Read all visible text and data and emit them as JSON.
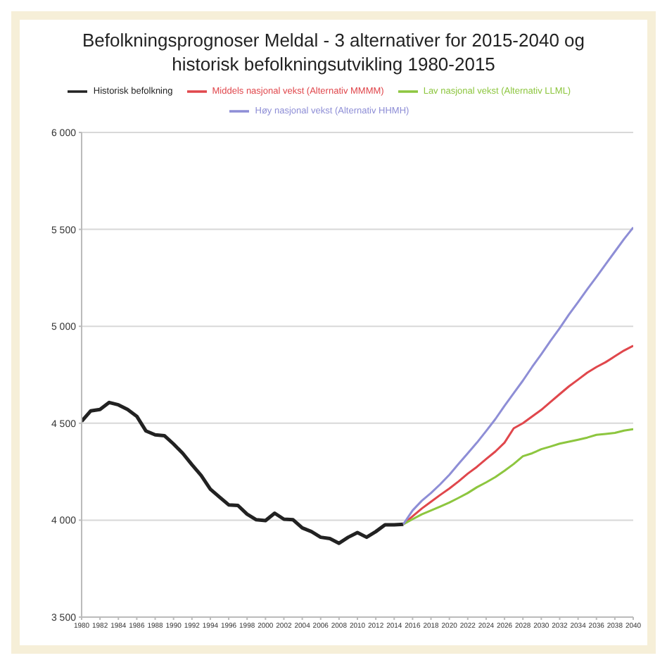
{
  "chart_data": {
    "type": "line",
    "title": "Befolkningsprognoser Meldal - 3 alternativer  for 2015-2040 og historisk befolkningsutvikling 1980-2015",
    "xlim": [
      1980,
      2040
    ],
    "xticks": [
      1980,
      1982,
      1984,
      1986,
      1988,
      1990,
      1992,
      1994,
      1996,
      1998,
      2000,
      2002,
      2004,
      2006,
      2008,
      2010,
      2012,
      2014,
      2016,
      2018,
      2020,
      2022,
      2024,
      2026,
      2028,
      2030,
      2032,
      2034,
      2036,
      2038,
      2040
    ],
    "ylim": [
      3500,
      6000
    ],
    "yticks": [
      {
        "value": 3500,
        "label": "3 500"
      },
      {
        "value": 4000,
        "label": "4 000"
      },
      {
        "value": 4500,
        "label": "4 500"
      },
      {
        "value": 5000,
        "label": "5 000"
      },
      {
        "value": 5500,
        "label": "5 500"
      },
      {
        "value": 6000,
        "label": "6 000"
      }
    ],
    "grid": "y",
    "legend": "top",
    "marker": "none",
    "line_style": "solid",
    "series": [
      {
        "name": "Historisk befolkning",
        "color": "#222222",
        "x": [
          1980,
          1981,
          1982,
          1983,
          1984,
          1985,
          1986,
          1987,
          1988,
          1989,
          1990,
          1991,
          1992,
          1993,
          1994,
          1995,
          1996,
          1997,
          1998,
          1999,
          2000,
          2001,
          2002,
          2003,
          2004,
          2005,
          2006,
          2007,
          2008,
          2009,
          2010,
          2011,
          2012,
          2013,
          2014,
          2015
        ],
        "values": [
          4510,
          4564,
          4571,
          4607,
          4595,
          4571,
          4536,
          4460,
          4440,
          4436,
          4393,
          4345,
          4286,
          4231,
          4160,
          4119,
          4079,
          4076,
          4031,
          4002,
          3998,
          4036,
          4005,
          4002,
          3960,
          3941,
          3912,
          3905,
          3881,
          3912,
          3936,
          3912,
          3941,
          3976,
          3976,
          3979
        ]
      },
      {
        "name": "Middels nasjonal vekst (Alternativ MMMM)",
        "color": "#e0474c",
        "x": [
          2015,
          2016,
          2017,
          2018,
          2019,
          2020,
          2021,
          2022,
          2023,
          2024,
          2025,
          2026,
          2027,
          2028,
          2029,
          2030,
          2031,
          2032,
          2033,
          2034,
          2035,
          2036,
          2037,
          2038,
          2039,
          2040
        ],
        "values": [
          3979,
          4020,
          4060,
          4095,
          4130,
          4163,
          4200,
          4240,
          4275,
          4315,
          4354,
          4400,
          4474,
          4500,
          4535,
          4569,
          4610,
          4650,
          4690,
          4725,
          4761,
          4790,
          4815,
          4845,
          4875,
          4900
        ]
      },
      {
        "name": "Lav nasjonal vekst (Alternativ LLML)",
        "color": "#8dc63f",
        "x": [
          2015,
          2016,
          2017,
          2018,
          2019,
          2020,
          2021,
          2022,
          2023,
          2024,
          2025,
          2026,
          2027,
          2028,
          2029,
          2030,
          2031,
          2032,
          2033,
          2034,
          2035,
          2036,
          2037,
          2038,
          2039,
          2040
        ],
        "values": [
          3979,
          4005,
          4030,
          4050,
          4070,
          4091,
          4115,
          4140,
          4170,
          4195,
          4222,
          4255,
          4290,
          4330,
          4345,
          4366,
          4380,
          4395,
          4405,
          4415,
          4426,
          4440,
          4445,
          4450,
          4462,
          4469
        ]
      },
      {
        "name": "Høy nasjonal vekst (Alternativ HHMH)",
        "color": "#8e8ed6",
        "x": [
          2015,
          2016,
          2017,
          2018,
          2019,
          2020,
          2021,
          2022,
          2023,
          2024,
          2025,
          2026,
          2027,
          2028,
          2029,
          2030,
          2031,
          2032,
          2033,
          2034,
          2035,
          2036,
          2037,
          2038,
          2039,
          2040
        ],
        "values": [
          3979,
          4050,
          4100,
          4140,
          4185,
          4234,
          4290,
          4345,
          4400,
          4460,
          4521,
          4590,
          4655,
          4720,
          4790,
          4856,
          4925,
          4990,
          5060,
          5125,
          5191,
          5255,
          5320,
          5385,
          5450,
          5510
        ]
      }
    ]
  }
}
